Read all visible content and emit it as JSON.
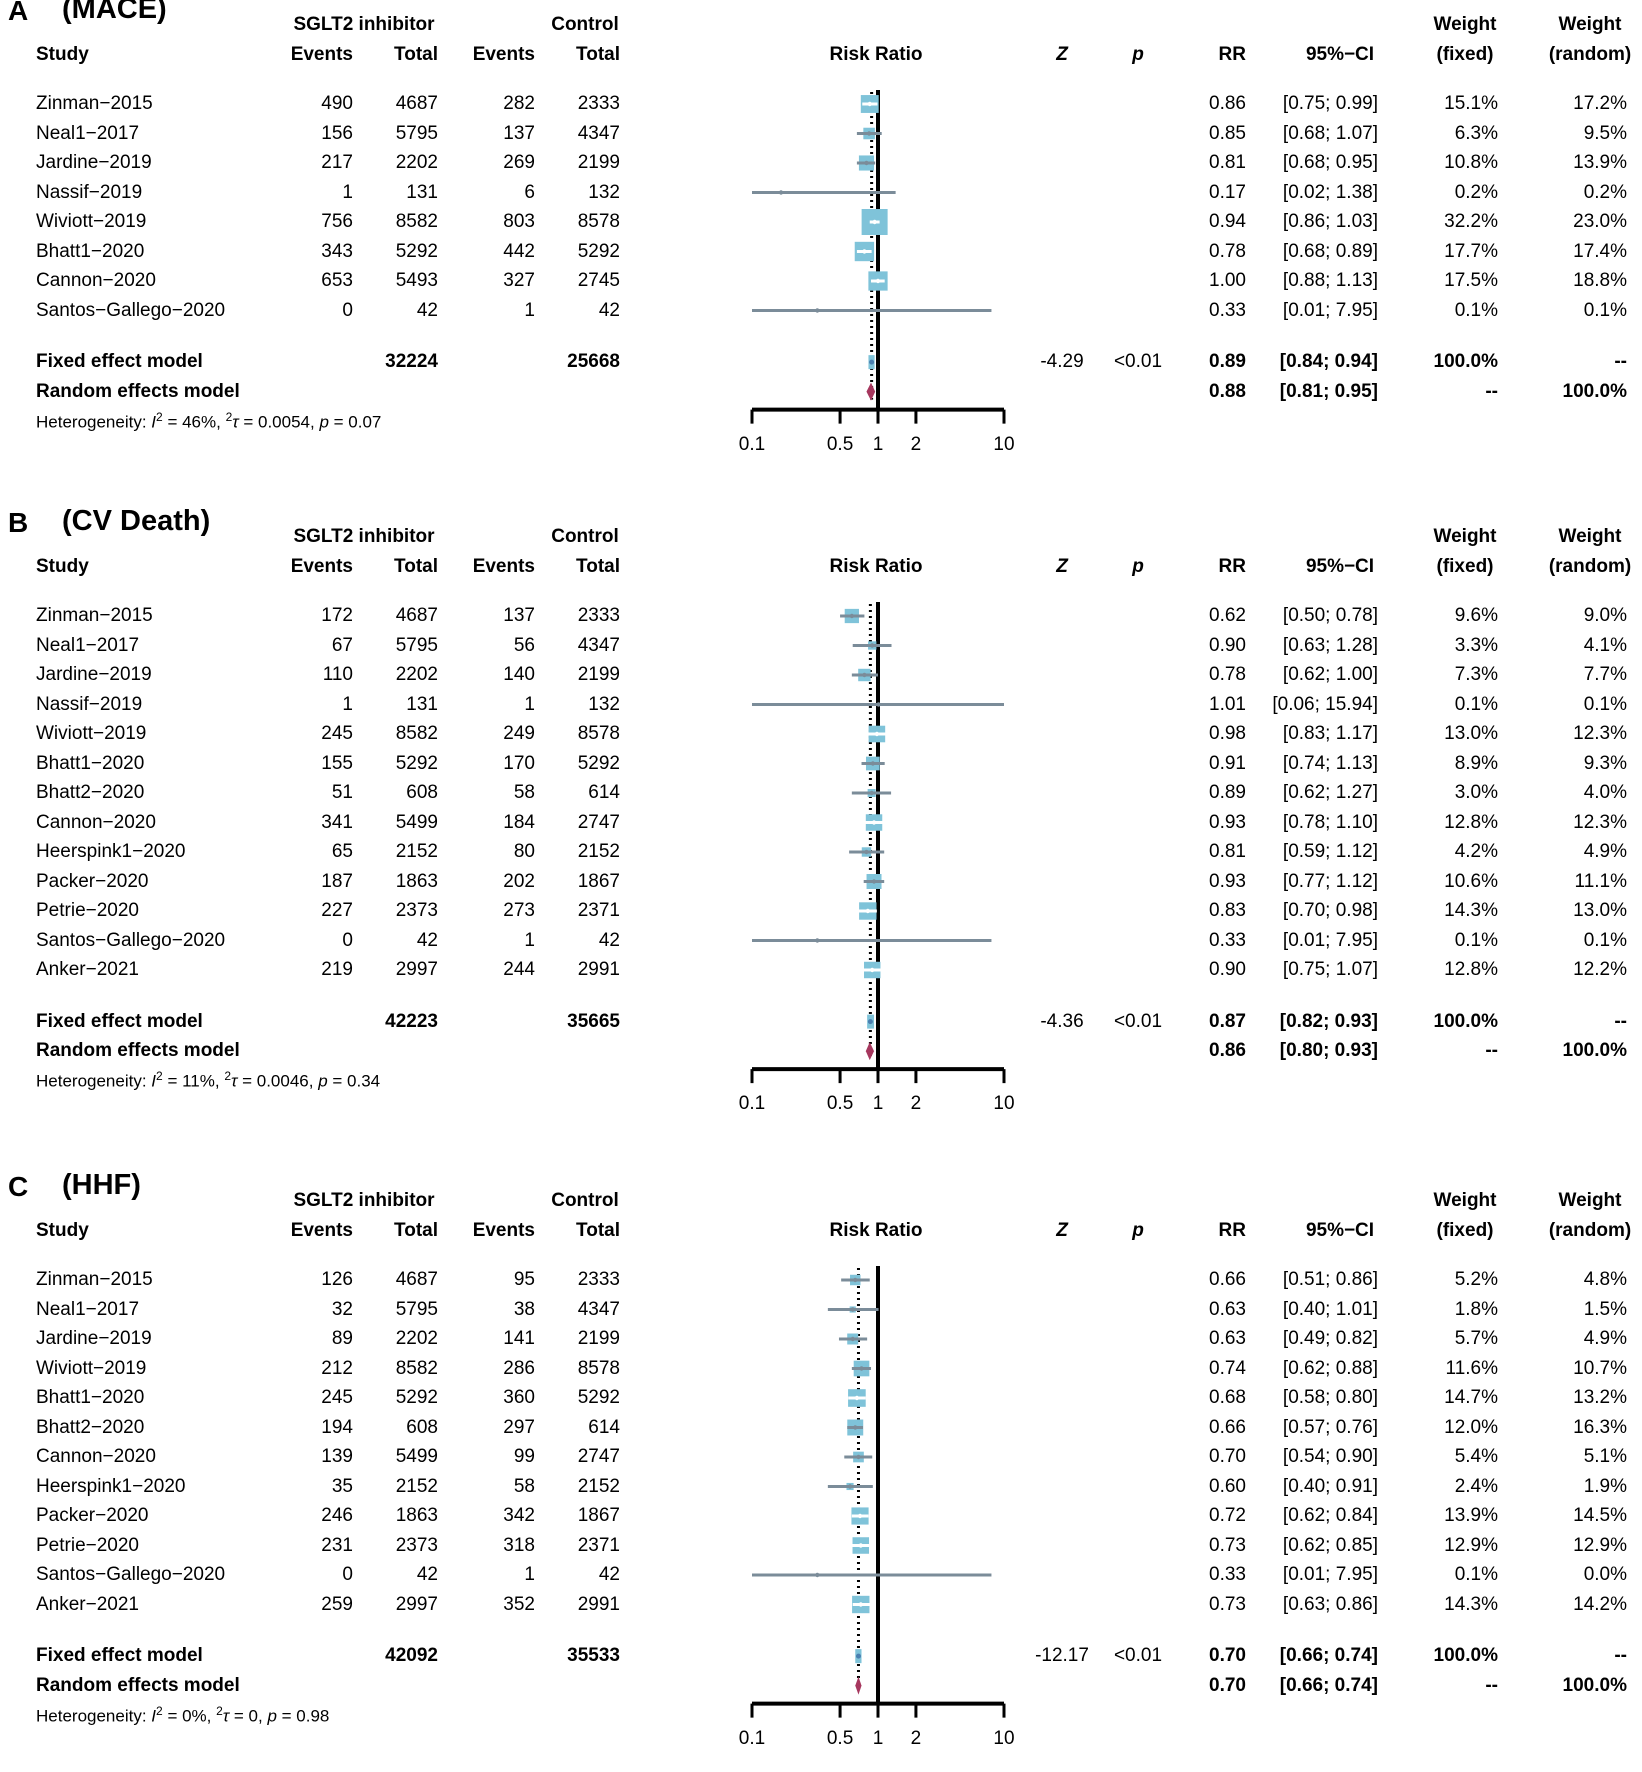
{
  "headers": {
    "study": "Study",
    "group_sglt2": "SGLT2 inhibitor",
    "group_control": "Control",
    "events": "Events",
    "total": "Total",
    "risk_ratio": "Risk Ratio",
    "z": "Z",
    "p": "p",
    "rr": "RR",
    "ci": "95%−CI",
    "weight": "Weight",
    "fixed": "(fixed)",
    "random": "(random)"
  },
  "colors": {
    "box": "#7fc3d9",
    "ci_line": "#7b8c99",
    "diamond": "#a6375e",
    "fixed_marker": "#4a7fb0",
    "axis": "#000000"
  },
  "chart_data": [
    {
      "type": "forest",
      "letter": "A",
      "title": "(MACE)",
      "xscale": "log",
      "xlim": [
        0.1,
        10
      ],
      "ticks": [
        "0.1",
        "0.5",
        "1",
        "2",
        "10"
      ],
      "tick_values": [
        0.1,
        0.5,
        1,
        2,
        10
      ],
      "studies": [
        {
          "name": "Zinman−2015",
          "e1": "490",
          "n1": "4687",
          "e2": "282",
          "n2": "2333",
          "rr": 0.86,
          "lo": 0.75,
          "hi": 0.99,
          "rr_text": "0.86",
          "ci_text": "[0.75; 0.99]",
          "wf": "15.1%",
          "wr": "17.2%"
        },
        {
          "name": "Neal1−2017",
          "e1": "156",
          "n1": "5795",
          "e2": "137",
          "n2": "4347",
          "rr": 0.85,
          "lo": 0.68,
          "hi": 1.07,
          "rr_text": "0.85",
          "ci_text": "[0.68; 1.07]",
          "wf": "6.3%",
          "wr": "9.5%"
        },
        {
          "name": "Jardine−2019",
          "e1": "217",
          "n1": "2202",
          "e2": "269",
          "n2": "2199",
          "rr": 0.81,
          "lo": 0.68,
          "hi": 0.95,
          "rr_text": "0.81",
          "ci_text": "[0.68; 0.95]",
          "wf": "10.8%",
          "wr": "13.9%"
        },
        {
          "name": "Nassif−2019",
          "e1": "1",
          "n1": "131",
          "e2": "6",
          "n2": "132",
          "rr": 0.17,
          "lo": 0.02,
          "hi": 1.38,
          "rr_text": "0.17",
          "ci_text": "[0.02; 1.38]",
          "wf": "0.2%",
          "wr": "0.2%"
        },
        {
          "name": "Wiviott−2019",
          "e1": "756",
          "n1": "8582",
          "e2": "803",
          "n2": "8578",
          "rr": 0.94,
          "lo": 0.86,
          "hi": 1.03,
          "rr_text": "0.94",
          "ci_text": "[0.86; 1.03]",
          "wf": "32.2%",
          "wr": "23.0%"
        },
        {
          "name": "Bhatt1−2020",
          "e1": "343",
          "n1": "5292",
          "e2": "442",
          "n2": "5292",
          "rr": 0.78,
          "lo": 0.68,
          "hi": 0.89,
          "rr_text": "0.78",
          "ci_text": "[0.68; 0.89]",
          "wf": "17.7%",
          "wr": "17.4%"
        },
        {
          "name": "Cannon−2020",
          "e1": "653",
          "n1": "5493",
          "e2": "327",
          "n2": "2745",
          "rr": 1.0,
          "lo": 0.88,
          "hi": 1.13,
          "rr_text": "1.00",
          "ci_text": "[0.88; 1.13]",
          "wf": "17.5%",
          "wr": "18.8%"
        },
        {
          "name": "Santos−Gallego−2020",
          "e1": "0",
          "n1": "42",
          "e2": "1",
          "n2": "42",
          "rr": 0.33,
          "lo": 0.01,
          "hi": 7.95,
          "rr_text": "0.33",
          "ci_text": "[0.01; 7.95]",
          "wf": "0.1%",
          "wr": "0.1%"
        }
      ],
      "fixed": {
        "label": "Fixed effect model",
        "n1": "32224",
        "n2": "25668",
        "z": "-4.29",
        "p": "<0.01",
        "rr": 0.89,
        "lo": 0.84,
        "hi": 0.94,
        "rr_text": "0.89",
        "ci_text": "[0.84; 0.94]",
        "wf": "100.0%",
        "wr": "--"
      },
      "random": {
        "label": "Random effects model",
        "rr": 0.88,
        "lo": 0.81,
        "hi": 0.95,
        "rr_text": "0.88",
        "ci_text": "[0.81; 0.95]",
        "wf": "--",
        "wr": "100.0%"
      },
      "heterogeneity": {
        "prefix": "Heterogeneity: ",
        "i_sym": "I",
        "sup2": "2",
        "i2": " = 46%, ",
        "tau_sym": "τ",
        "tau2": " = 0.0054, ",
        "p_sym": "p",
        "p_val": " = 0.07"
      }
    },
    {
      "type": "forest",
      "letter": "B",
      "title": "(CV Death)",
      "xscale": "log",
      "xlim": [
        0.1,
        10
      ],
      "ticks": [
        "0.1",
        "0.5",
        "1",
        "2",
        "10"
      ],
      "tick_values": [
        0.1,
        0.5,
        1,
        2,
        10
      ],
      "studies": [
        {
          "name": "Zinman−2015",
          "e1": "172",
          "n1": "4687",
          "e2": "137",
          "n2": "2333",
          "rr": 0.62,
          "lo": 0.5,
          "hi": 0.78,
          "rr_text": "0.62",
          "ci_text": "[0.50; 0.78]",
          "wf": "9.6%",
          "wr": "9.0%"
        },
        {
          "name": "Neal1−2017",
          "e1": "67",
          "n1": "5795",
          "e2": "56",
          "n2": "4347",
          "rr": 0.9,
          "lo": 0.63,
          "hi": 1.28,
          "rr_text": "0.90",
          "ci_text": "[0.63; 1.28]",
          "wf": "3.3%",
          "wr": "4.1%"
        },
        {
          "name": "Jardine−2019",
          "e1": "110",
          "n1": "2202",
          "e2": "140",
          "n2": "2199",
          "rr": 0.78,
          "lo": 0.62,
          "hi": 1.0,
          "rr_text": "0.78",
          "ci_text": "[0.62; 1.00]",
          "wf": "7.3%",
          "wr": "7.7%"
        },
        {
          "name": "Nassif−2019",
          "e1": "1",
          "n1": "131",
          "e2": "1",
          "n2": "132",
          "rr": 1.01,
          "lo": 0.06,
          "hi": 15.94,
          "rr_text": "1.01",
          "ci_text": "[0.06; 15.94]",
          "wf": "0.1%",
          "wr": "0.1%"
        },
        {
          "name": "Wiviott−2019",
          "e1": "245",
          "n1": "8582",
          "e2": "249",
          "n2": "8578",
          "rr": 0.98,
          "lo": 0.83,
          "hi": 1.17,
          "rr_text": "0.98",
          "ci_text": "[0.83; 1.17]",
          "wf": "13.0%",
          "wr": "12.3%"
        },
        {
          "name": "Bhatt1−2020",
          "e1": "155",
          "n1": "5292",
          "e2": "170",
          "n2": "5292",
          "rr": 0.91,
          "lo": 0.74,
          "hi": 1.13,
          "rr_text": "0.91",
          "ci_text": "[0.74; 1.13]",
          "wf": "8.9%",
          "wr": "9.3%"
        },
        {
          "name": "Bhatt2−2020",
          "e1": "51",
          "n1": "608",
          "e2": "58",
          "n2": "614",
          "rr": 0.89,
          "lo": 0.62,
          "hi": 1.27,
          "rr_text": "0.89",
          "ci_text": "[0.62; 1.27]",
          "wf": "3.0%",
          "wr": "4.0%"
        },
        {
          "name": "Cannon−2020",
          "e1": "341",
          "n1": "5499",
          "e2": "184",
          "n2": "2747",
          "rr": 0.93,
          "lo": 0.78,
          "hi": 1.1,
          "rr_text": "0.93",
          "ci_text": "[0.78; 1.10]",
          "wf": "12.8%",
          "wr": "12.3%"
        },
        {
          "name": "Heerspink1−2020",
          "e1": "65",
          "n1": "2152",
          "e2": "80",
          "n2": "2152",
          "rr": 0.81,
          "lo": 0.59,
          "hi": 1.12,
          "rr_text": "0.81",
          "ci_text": "[0.59; 1.12]",
          "wf": "4.2%",
          "wr": "4.9%"
        },
        {
          "name": "Packer−2020",
          "e1": "187",
          "n1": "1863",
          "e2": "202",
          "n2": "1867",
          "rr": 0.93,
          "lo": 0.77,
          "hi": 1.12,
          "rr_text": "0.93",
          "ci_text": "[0.77; 1.12]",
          "wf": "10.6%",
          "wr": "11.1%"
        },
        {
          "name": "Petrie−2020",
          "e1": "227",
          "n1": "2373",
          "e2": "273",
          "n2": "2371",
          "rr": 0.83,
          "lo": 0.7,
          "hi": 0.98,
          "rr_text": "0.83",
          "ci_text": "[0.70; 0.98]",
          "wf": "14.3%",
          "wr": "13.0%"
        },
        {
          "name": "Santos−Gallego−2020",
          "e1": "0",
          "n1": "42",
          "e2": "1",
          "n2": "42",
          "rr": 0.33,
          "lo": 0.01,
          "hi": 7.95,
          "rr_text": "0.33",
          "ci_text": "[0.01; 7.95]",
          "wf": "0.1%",
          "wr": "0.1%"
        },
        {
          "name": "Anker−2021",
          "e1": "219",
          "n1": "2997",
          "e2": "244",
          "n2": "2991",
          "rr": 0.9,
          "lo": 0.75,
          "hi": 1.07,
          "rr_text": "0.90",
          "ci_text": "[0.75; 1.07]",
          "wf": "12.8%",
          "wr": "12.2%"
        }
      ],
      "fixed": {
        "label": "Fixed effect model",
        "n1": "42223",
        "n2": "35665",
        "z": "-4.36",
        "p": "<0.01",
        "rr": 0.87,
        "lo": 0.82,
        "hi": 0.93,
        "rr_text": "0.87",
        "ci_text": "[0.82; 0.93]",
        "wf": "100.0%",
        "wr": "--"
      },
      "random": {
        "label": "Random effects model",
        "rr": 0.86,
        "lo": 0.8,
        "hi": 0.93,
        "rr_text": "0.86",
        "ci_text": "[0.80; 0.93]",
        "wf": "--",
        "wr": "100.0%"
      },
      "heterogeneity": {
        "prefix": "Heterogeneity: ",
        "i_sym": "I",
        "sup2": "2",
        "i2": " = 11%, ",
        "tau_sym": "τ",
        "tau2": " = 0.0046, ",
        "p_sym": "p",
        "p_val": " = 0.34"
      }
    },
    {
      "type": "forest",
      "letter": "C",
      "title": "(HHF)",
      "xscale": "log",
      "xlim": [
        0.1,
        10
      ],
      "ticks": [
        "0.1",
        "0.5",
        "1",
        "2",
        "10"
      ],
      "tick_values": [
        0.1,
        0.5,
        1,
        2,
        10
      ],
      "studies": [
        {
          "name": "Zinman−2015",
          "e1": "126",
          "n1": "4687",
          "e2": "95",
          "n2": "2333",
          "rr": 0.66,
          "lo": 0.51,
          "hi": 0.86,
          "rr_text": "0.66",
          "ci_text": "[0.51; 0.86]",
          "wf": "5.2%",
          "wr": "4.8%"
        },
        {
          "name": "Neal1−2017",
          "e1": "32",
          "n1": "5795",
          "e2": "38",
          "n2": "4347",
          "rr": 0.63,
          "lo": 0.4,
          "hi": 1.01,
          "rr_text": "0.63",
          "ci_text": "[0.40; 1.01]",
          "wf": "1.8%",
          "wr": "1.5%"
        },
        {
          "name": "Jardine−2019",
          "e1": "89",
          "n1": "2202",
          "e2": "141",
          "n2": "2199",
          "rr": 0.63,
          "lo": 0.49,
          "hi": 0.82,
          "rr_text": "0.63",
          "ci_text": "[0.49; 0.82]",
          "wf": "5.7%",
          "wr": "4.9%"
        },
        {
          "name": "Wiviott−2019",
          "e1": "212",
          "n1": "8582",
          "e2": "286",
          "n2": "8578",
          "rr": 0.74,
          "lo": 0.62,
          "hi": 0.88,
          "rr_text": "0.74",
          "ci_text": "[0.62; 0.88]",
          "wf": "11.6%",
          "wr": "10.7%"
        },
        {
          "name": "Bhatt1−2020",
          "e1": "245",
          "n1": "5292",
          "e2": "360",
          "n2": "5292",
          "rr": 0.68,
          "lo": 0.58,
          "hi": 0.8,
          "rr_text": "0.68",
          "ci_text": "[0.58; 0.80]",
          "wf": "14.7%",
          "wr": "13.2%"
        },
        {
          "name": "Bhatt2−2020",
          "e1": "194",
          "n1": "608",
          "e2": "297",
          "n2": "614",
          "rr": 0.66,
          "lo": 0.57,
          "hi": 0.76,
          "rr_text": "0.66",
          "ci_text": "[0.57; 0.76]",
          "wf": "12.0%",
          "wr": "16.3%"
        },
        {
          "name": "Cannon−2020",
          "e1": "139",
          "n1": "5499",
          "e2": "99",
          "n2": "2747",
          "rr": 0.7,
          "lo": 0.54,
          "hi": 0.9,
          "rr_text": "0.70",
          "ci_text": "[0.54; 0.90]",
          "wf": "5.4%",
          "wr": "5.1%"
        },
        {
          "name": "Heerspink1−2020",
          "e1": "35",
          "n1": "2152",
          "e2": "58",
          "n2": "2152",
          "rr": 0.6,
          "lo": 0.4,
          "hi": 0.91,
          "rr_text": "0.60",
          "ci_text": "[0.40; 0.91]",
          "wf": "2.4%",
          "wr": "1.9%"
        },
        {
          "name": "Packer−2020",
          "e1": "246",
          "n1": "1863",
          "e2": "342",
          "n2": "1867",
          "rr": 0.72,
          "lo": 0.62,
          "hi": 0.84,
          "rr_text": "0.72",
          "ci_text": "[0.62; 0.84]",
          "wf": "13.9%",
          "wr": "14.5%"
        },
        {
          "name": "Petrie−2020",
          "e1": "231",
          "n1": "2373",
          "e2": "318",
          "n2": "2371",
          "rr": 0.73,
          "lo": 0.62,
          "hi": 0.85,
          "rr_text": "0.73",
          "ci_text": "[0.62; 0.85]",
          "wf": "12.9%",
          "wr": "12.9%"
        },
        {
          "name": "Santos−Gallego−2020",
          "e1": "0",
          "n1": "42",
          "e2": "1",
          "n2": "42",
          "rr": 0.33,
          "lo": 0.01,
          "hi": 7.95,
          "rr_text": "0.33",
          "ci_text": "[0.01; 7.95]",
          "wf": "0.1%",
          "wr": "0.0%"
        },
        {
          "name": "Anker−2021",
          "e1": "259",
          "n1": "2997",
          "e2": "352",
          "n2": "2991",
          "rr": 0.73,
          "lo": 0.63,
          "hi": 0.86,
          "rr_text": "0.73",
          "ci_text": "[0.63; 0.86]",
          "wf": "14.3%",
          "wr": "14.2%"
        }
      ],
      "fixed": {
        "label": "Fixed effect model",
        "n1": "42092",
        "n2": "35533",
        "z": "-12.17",
        "p": "<0.01",
        "rr": 0.7,
        "lo": 0.66,
        "hi": 0.74,
        "rr_text": "0.70",
        "ci_text": "[0.66; 0.74]",
        "wf": "100.0%",
        "wr": "--"
      },
      "random": {
        "label": "Random effects model",
        "rr": 0.7,
        "lo": 0.66,
        "hi": 0.74,
        "rr_text": "0.70",
        "ci_text": "[0.66; 0.74]",
        "wf": "--",
        "wr": "100.0%"
      },
      "heterogeneity": {
        "prefix": "Heterogeneity: ",
        "i_sym": "I",
        "sup2": "2",
        "i2": " = 0%, ",
        "tau_sym": "τ",
        "tau2": " = 0, ",
        "p_sym": "p",
        "p_val": " = 0.98"
      }
    }
  ]
}
